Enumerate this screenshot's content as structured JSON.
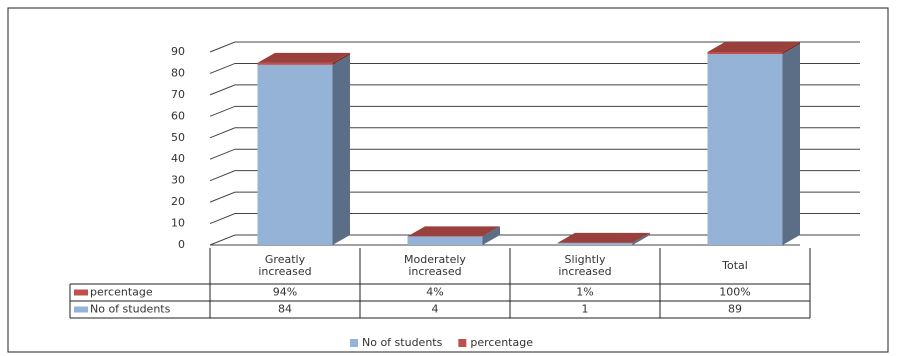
{
  "chart_data": {
    "type": "bar3d_stacked",
    "categories": [
      "Greatly increased",
      "Moderately increased",
      "Slightly increased",
      "Total"
    ],
    "series": [
      {
        "name": "No of students",
        "color": "#95b3d7",
        "values": [
          84,
          4,
          1,
          89
        ]
      },
      {
        "name": "percentage",
        "color": "#c0504d",
        "values": [
          0.94,
          0.04,
          0.01,
          1.0
        ],
        "value_labels": [
          "94%",
          "4%",
          "1%",
          "100%"
        ]
      }
    ],
    "ylim": [
      0,
      90
    ],
    "yticks": [
      0,
      10,
      20,
      30,
      40,
      50,
      60,
      70,
      80,
      90
    ],
    "grid": true
  }
}
